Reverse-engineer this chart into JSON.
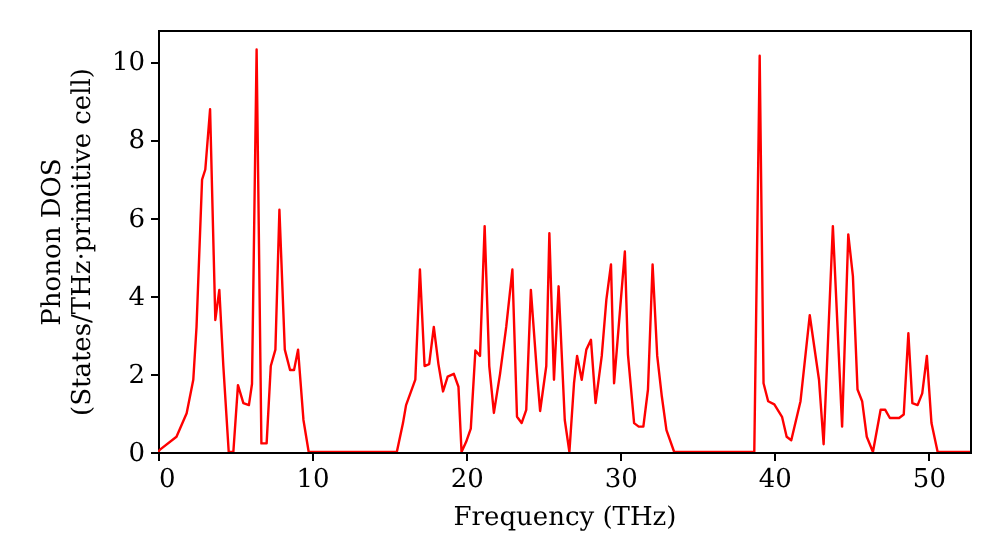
{
  "chart_data": {
    "type": "line",
    "xlabel": "Frequency (THz)",
    "ylabel": "Phonon DOS\n(States/THz·primitive cell)",
    "x": [
      0,
      0.13,
      1.2,
      1.86,
      2.29,
      2.5,
      2.86,
      3.07,
      3.38,
      3.72,
      3.98,
      4.24,
      4.59,
      4.89,
      5.19,
      5.54,
      5.9,
      6.1,
      6.4,
      6.71,
      7.05,
      7.32,
      7.62,
      7.88,
      8.23,
      8.57,
      8.83,
      9.09,
      9.44,
      9.78,
      15.5,
      15.9,
      16.1,
      16.7,
      17.0,
      17.3,
      17.6,
      17.9,
      18.2,
      18.5,
      18.8,
      19.2,
      19.5,
      19.7,
      20.0,
      20.3,
      20.6,
      20.9,
      21.2,
      21.5,
      21.8,
      22.2,
      22.6,
      23.0,
      23.3,
      23.6,
      23.9,
      24.2,
      24.6,
      24.8,
      25.2,
      25.4,
      25.7,
      26.0,
      26.4,
      26.7,
      27.0,
      27.2,
      27.5,
      27.8,
      28.1,
      28.4,
      28.8,
      29.1,
      29.4,
      29.6,
      30.0,
      30.3,
      30.5,
      30.9,
      31.2,
      31.5,
      31.8,
      32.1,
      32.4,
      32.7,
      33.0,
      33.5,
      38.7,
      39.05,
      39.3,
      39.6,
      40.0,
      40.5,
      40.8,
      41.1,
      41.7,
      42.3,
      42.9,
      43.2,
      43.8,
      44.4,
      44.8,
      45.1,
      45.4,
      45.7,
      46.0,
      46.4,
      46.9,
      47.2,
      47.5,
      48.1,
      48.4,
      48.7,
      48.96,
      49.3,
      49.6,
      49.9,
      50.2,
      50.6,
      52.7
    ],
    "series": [
      {
        "color": "#ff0000",
        "values": [
          0,
          0.06,
          0.39,
          0.99,
          1.85,
          3.2,
          6.97,
          7.23,
          8.77,
          3.38,
          4.15,
          2.2,
          0,
          0,
          1.71,
          1.25,
          1.2,
          1.74,
          10.3,
          0.22,
          0.22,
          2.2,
          2.62,
          6.2,
          2.62,
          2.1,
          2.1,
          2.62,
          0.82,
          0,
          0,
          0.74,
          1.2,
          1.85,
          4.67,
          2.2,
          2.25,
          3.2,
          2.25,
          1.55,
          1.93,
          2.0,
          1.67,
          0,
          0.26,
          0.6,
          2.6,
          2.46,
          5.78,
          2.2,
          1.0,
          2.0,
          3.2,
          4.67,
          0.9,
          0.74,
          1.08,
          4.15,
          2.0,
          1.05,
          2.2,
          5.6,
          1.85,
          4.24,
          0.82,
          0,
          1.76,
          2.46,
          1.85,
          2.62,
          2.87,
          1.25,
          2.46,
          3.9,
          4.8,
          1.76,
          3.7,
          5.13,
          2.5,
          0.74,
          0.65,
          0.65,
          1.6,
          4.8,
          2.46,
          1.42,
          0.56,
          0,
          0,
          10.14,
          1.76,
          1.3,
          1.22,
          0.9,
          0.39,
          0.3,
          1.3,
          3.5,
          1.85,
          0.2,
          5.78,
          0.65,
          5.57,
          4.5,
          1.6,
          1.3,
          0.39,
          0,
          1.08,
          1.08,
          0.87,
          0.87,
          0.96,
          3.04,
          1.25,
          1.2,
          1.5,
          2.46,
          0.74,
          0,
          0
        ]
      }
    ],
    "xlim": [
      0,
      52.7
    ],
    "xticks": [
      0,
      10,
      20,
      30,
      40,
      50
    ],
    "ylim": [
      0,
      10.8
    ],
    "yticks": [
      0,
      2,
      4,
      6,
      8,
      10
    ]
  }
}
